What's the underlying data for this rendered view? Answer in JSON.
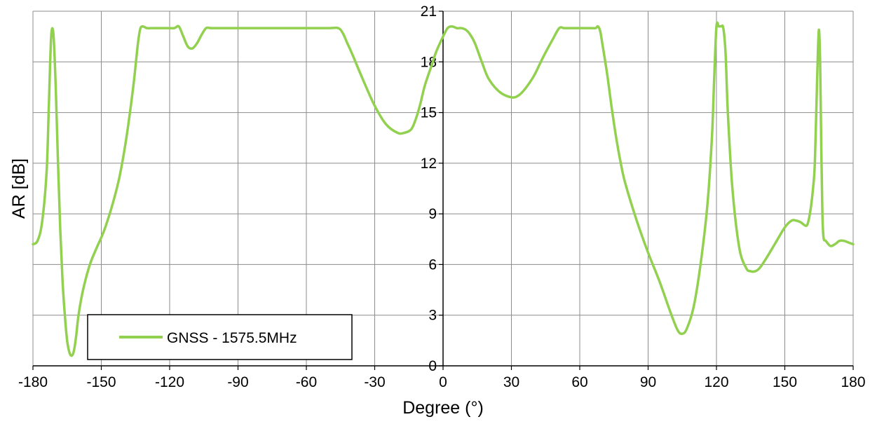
{
  "chart_data": {
    "type": "line",
    "title": "",
    "xlabel": "Degree (°)",
    "ylabel": "AR [dB]",
    "xlim": [
      -180,
      180
    ],
    "ylim": [
      0,
      21
    ],
    "xticks": [
      -180,
      -150,
      -120,
      -90,
      -60,
      -30,
      0,
      30,
      60,
      90,
      120,
      150,
      180
    ],
    "yticks": [
      0,
      3,
      6,
      9,
      12,
      15,
      18,
      21
    ],
    "grid": true,
    "legend_position": "bottom-left",
    "series": [
      {
        "name": "GNSS - 1575.5MHz",
        "color": "#92d050",
        "x": [
          -180,
          -178,
          -176,
          -174,
          -173,
          -172,
          -171,
          -170,
          -169,
          -168,
          -167,
          -166,
          -165,
          -164,
          -163,
          -162,
          -161,
          -160,
          -158,
          -155,
          -152,
          -150,
          -148,
          -145,
          -142,
          -139,
          -136,
          -134,
          -133,
          -132,
          -130,
          -128,
          -125,
          -122,
          -118,
          -116,
          -114,
          -112,
          -110,
          -108,
          -106,
          -104,
          -102,
          -100,
          -95,
          -90,
          -80,
          -70,
          -60,
          -50,
          -46,
          -44,
          -42,
          -40,
          -35,
          -30,
          -25,
          -20,
          -17,
          -14,
          -12,
          -10,
          -8,
          -5,
          -3,
          0,
          2,
          4,
          6,
          8,
          10,
          12,
          14,
          17,
          20,
          25,
          30,
          33,
          36,
          40,
          44,
          48,
          51,
          53,
          55,
          60,
          65,
          67,
          68,
          69,
          70,
          72,
          74,
          76,
          78,
          80,
          85,
          90,
          95,
          100,
          103,
          105,
          107,
          110,
          113,
          116,
          118,
          119,
          120,
          121,
          122,
          123,
          124,
          125,
          127,
          130,
          133,
          135,
          137,
          139,
          142,
          146,
          150,
          153,
          155,
          157,
          159,
          160,
          161,
          162,
          163,
          163.5,
          164,
          164.5,
          165,
          165.5,
          166,
          166.5,
          167,
          168,
          170,
          172,
          174,
          176,
          178,
          180
        ],
        "values": [
          7.2,
          7.4,
          8.5,
          11.5,
          15.5,
          19.5,
          19.6,
          16.5,
          12.0,
          8.0,
          5.0,
          3.0,
          1.5,
          0.8,
          0.6,
          0.9,
          1.8,
          3.0,
          4.5,
          6.0,
          7.0,
          7.6,
          8.3,
          9.6,
          11.2,
          13.5,
          16.5,
          19.0,
          19.9,
          20.1,
          20.0,
          20.0,
          20.0,
          20.0,
          20.0,
          20.1,
          19.5,
          18.9,
          18.8,
          19.1,
          19.6,
          20.0,
          20.0,
          20.0,
          20.0,
          20.0,
          20.0,
          20.0,
          20.0,
          20.0,
          20.0,
          19.7,
          19.1,
          18.5,
          16.9,
          15.4,
          14.3,
          13.8,
          13.8,
          14.0,
          14.6,
          15.5,
          16.6,
          17.8,
          18.6,
          19.5,
          20.0,
          20.1,
          20.0,
          20.0,
          19.9,
          19.6,
          19.1,
          18.0,
          17.0,
          16.2,
          15.9,
          16.0,
          16.4,
          17.2,
          18.3,
          19.3,
          20.0,
          20.0,
          20.0,
          20.0,
          20.0,
          20.0,
          20.1,
          19.8,
          19.0,
          17.3,
          15.3,
          13.5,
          12.0,
          10.8,
          8.6,
          6.7,
          5.0,
          3.1,
          2.1,
          1.9,
          2.2,
          3.5,
          6.0,
          9.5,
          13.5,
          17.0,
          20.1,
          20.1,
          20.1,
          20.0,
          18.5,
          15.0,
          10.5,
          7.0,
          5.8,
          5.6,
          5.6,
          5.8,
          6.4,
          7.3,
          8.2,
          8.6,
          8.6,
          8.5,
          8.3,
          8.4,
          9.0,
          10.0,
          11.5,
          13.5,
          16.0,
          18.5,
          19.9,
          18.0,
          13.0,
          9.0,
          7.6,
          7.4,
          7.1,
          7.2,
          7.4,
          7.4,
          7.3,
          7.2
        ]
      }
    ]
  }
}
